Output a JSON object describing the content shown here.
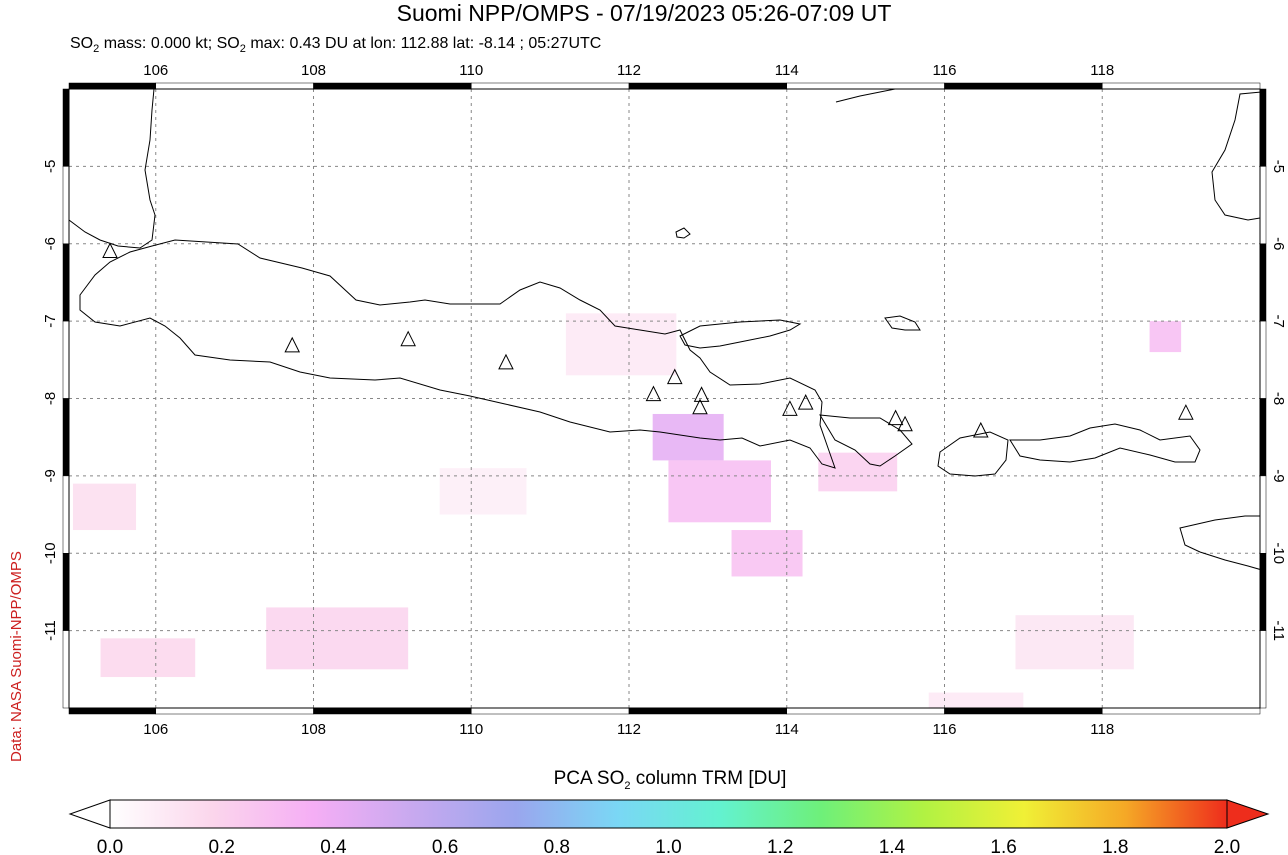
{
  "header": {
    "title": "Suomi NPP/OMPS - 07/19/2023 05:26-07:09 UT",
    "subtitle_parts": [
      "SO",
      "2",
      " mass: 0.000 kt; SO",
      "2",
      " max: 0.43 DU at lon: 112.88 lat: -8.14 ; 05:27UTC"
    ]
  },
  "credit": "Data: NASA Suomi-NPP/OMPS",
  "map": {
    "lon_range": [
      104.9,
      120.0
    ],
    "lat_range": [
      -12.0,
      -4.0
    ],
    "lon_ticks": [
      "106",
      "108",
      "110",
      "112",
      "114",
      "116",
      "118"
    ],
    "lon_tick_values": [
      106,
      108,
      110,
      112,
      114,
      116,
      118
    ],
    "lat_ticks": [
      "-5",
      "-6",
      "-7",
      "-8",
      "-9",
      "-10",
      "-11"
    ],
    "lat_tick_values": [
      -5,
      -6,
      -7,
      -8,
      -9,
      -10,
      -11
    ],
    "grid": "dotted",
    "volcano_marker": "triangle-icon",
    "volcanoes": [
      {
        "lon": 105.42,
        "lat": -6.1
      },
      {
        "lon": 107.73,
        "lat": -7.32
      },
      {
        "lon": 109.2,
        "lat": -7.24
      },
      {
        "lon": 110.44,
        "lat": -7.54
      },
      {
        "lon": 112.31,
        "lat": -7.95
      },
      {
        "lon": 112.58,
        "lat": -7.73
      },
      {
        "lon": 112.92,
        "lat": -7.96
      },
      {
        "lon": 112.9,
        "lat": -8.12
      },
      {
        "lon": 114.04,
        "lat": -8.14
      },
      {
        "lon": 114.24,
        "lat": -8.06
      },
      {
        "lon": 115.38,
        "lat": -8.26
      },
      {
        "lon": 115.5,
        "lat": -8.34
      },
      {
        "lon": 116.46,
        "lat": -8.42
      },
      {
        "lon": 119.06,
        "lat": -8.19
      }
    ],
    "so2_cells": [
      {
        "lon": 112.3,
        "lat": -8.2,
        "w": 0.9,
        "h": 0.6,
        "value": 0.43
      },
      {
        "lon": 112.5,
        "lat": -8.8,
        "w": 1.3,
        "h": 0.8,
        "value": 0.3
      },
      {
        "lon": 113.3,
        "lat": -9.7,
        "w": 0.9,
        "h": 0.6,
        "value": 0.28
      },
      {
        "lon": 114.4,
        "lat": -8.7,
        "w": 1.0,
        "h": 0.5,
        "value": 0.22
      },
      {
        "lon": 107.4,
        "lat": -10.7,
        "w": 1.8,
        "h": 0.8,
        "value": 0.2
      },
      {
        "lon": 105.3,
        "lat": -11.1,
        "w": 1.2,
        "h": 0.5,
        "value": 0.18
      },
      {
        "lon": 104.95,
        "lat": -9.1,
        "w": 0.8,
        "h": 0.6,
        "value": 0.15
      },
      {
        "lon": 118.6,
        "lat": -7.0,
        "w": 0.4,
        "h": 0.4,
        "value": 0.3
      },
      {
        "lon": 111.2,
        "lat": -6.9,
        "w": 1.4,
        "h": 0.8,
        "value": 0.1
      },
      {
        "lon": 116.9,
        "lat": -10.8,
        "w": 1.5,
        "h": 0.7,
        "value": 0.12
      },
      {
        "lon": 109.6,
        "lat": -8.9,
        "w": 1.1,
        "h": 0.6,
        "value": 0.08
      },
      {
        "lon": 115.8,
        "lat": -11.8,
        "w": 1.2,
        "h": 0.6,
        "value": 0.1
      }
    ]
  },
  "colorbar": {
    "label_parts": [
      "PCA SO",
      "2",
      " column TRM [DU]"
    ],
    "ticks": [
      "0.0",
      "0.2",
      "0.4",
      "0.6",
      "0.8",
      "1.0",
      "1.2",
      "1.4",
      "1.6",
      "1.8",
      "2.0"
    ],
    "range": [
      0.0,
      2.0
    ],
    "colors": [
      "#ffffff",
      "#fbd6ec",
      "#f5aef5",
      "#c7a9ef",
      "#9aa6ee",
      "#7ad7f5",
      "#63f2d0",
      "#6ef07a",
      "#b0f243",
      "#f0f036",
      "#f5a826",
      "#ee2d1c"
    ]
  }
}
